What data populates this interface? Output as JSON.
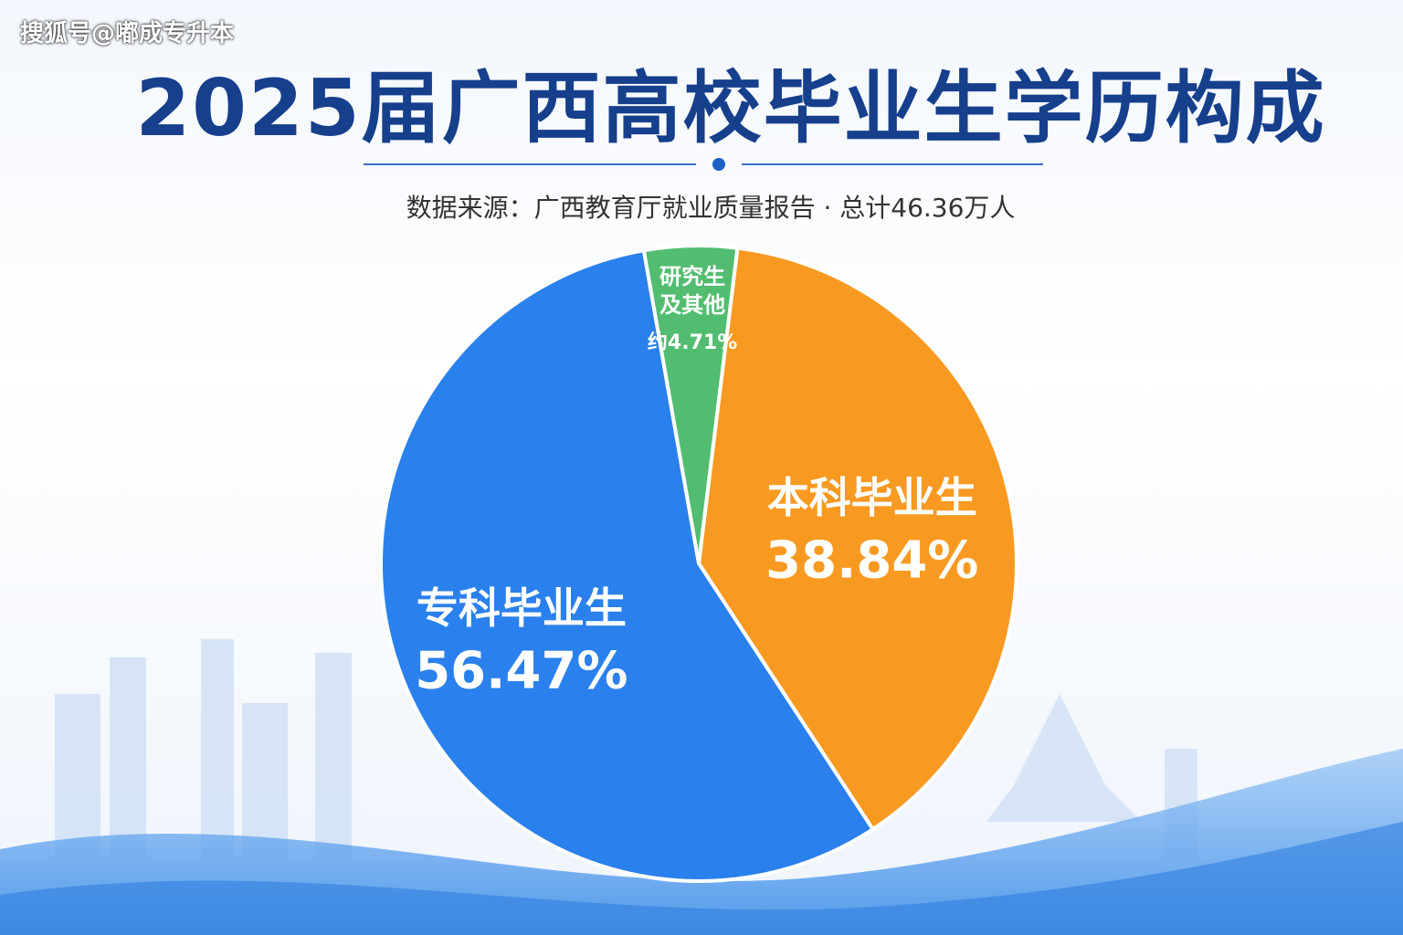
{
  "watermark": "搜狐号@嘟成专升本",
  "chart_data": {
    "type": "pie",
    "title": "2025届广西高校毕业生学历构成",
    "subtitle": "数据来源：广西教育厅就业质量报告 · 总计46.36万人",
    "categories": [
      "本科毕业生",
      "专科毕业生",
      "研究生及其他"
    ],
    "values": [
      38.84,
      56.47,
      4.71
    ],
    "value_labels": [
      "38.84%",
      "56.47%",
      "约4.71%"
    ],
    "colors": [
      "#f89a22",
      "#2a80ec",
      "#52bd70"
    ]
  }
}
